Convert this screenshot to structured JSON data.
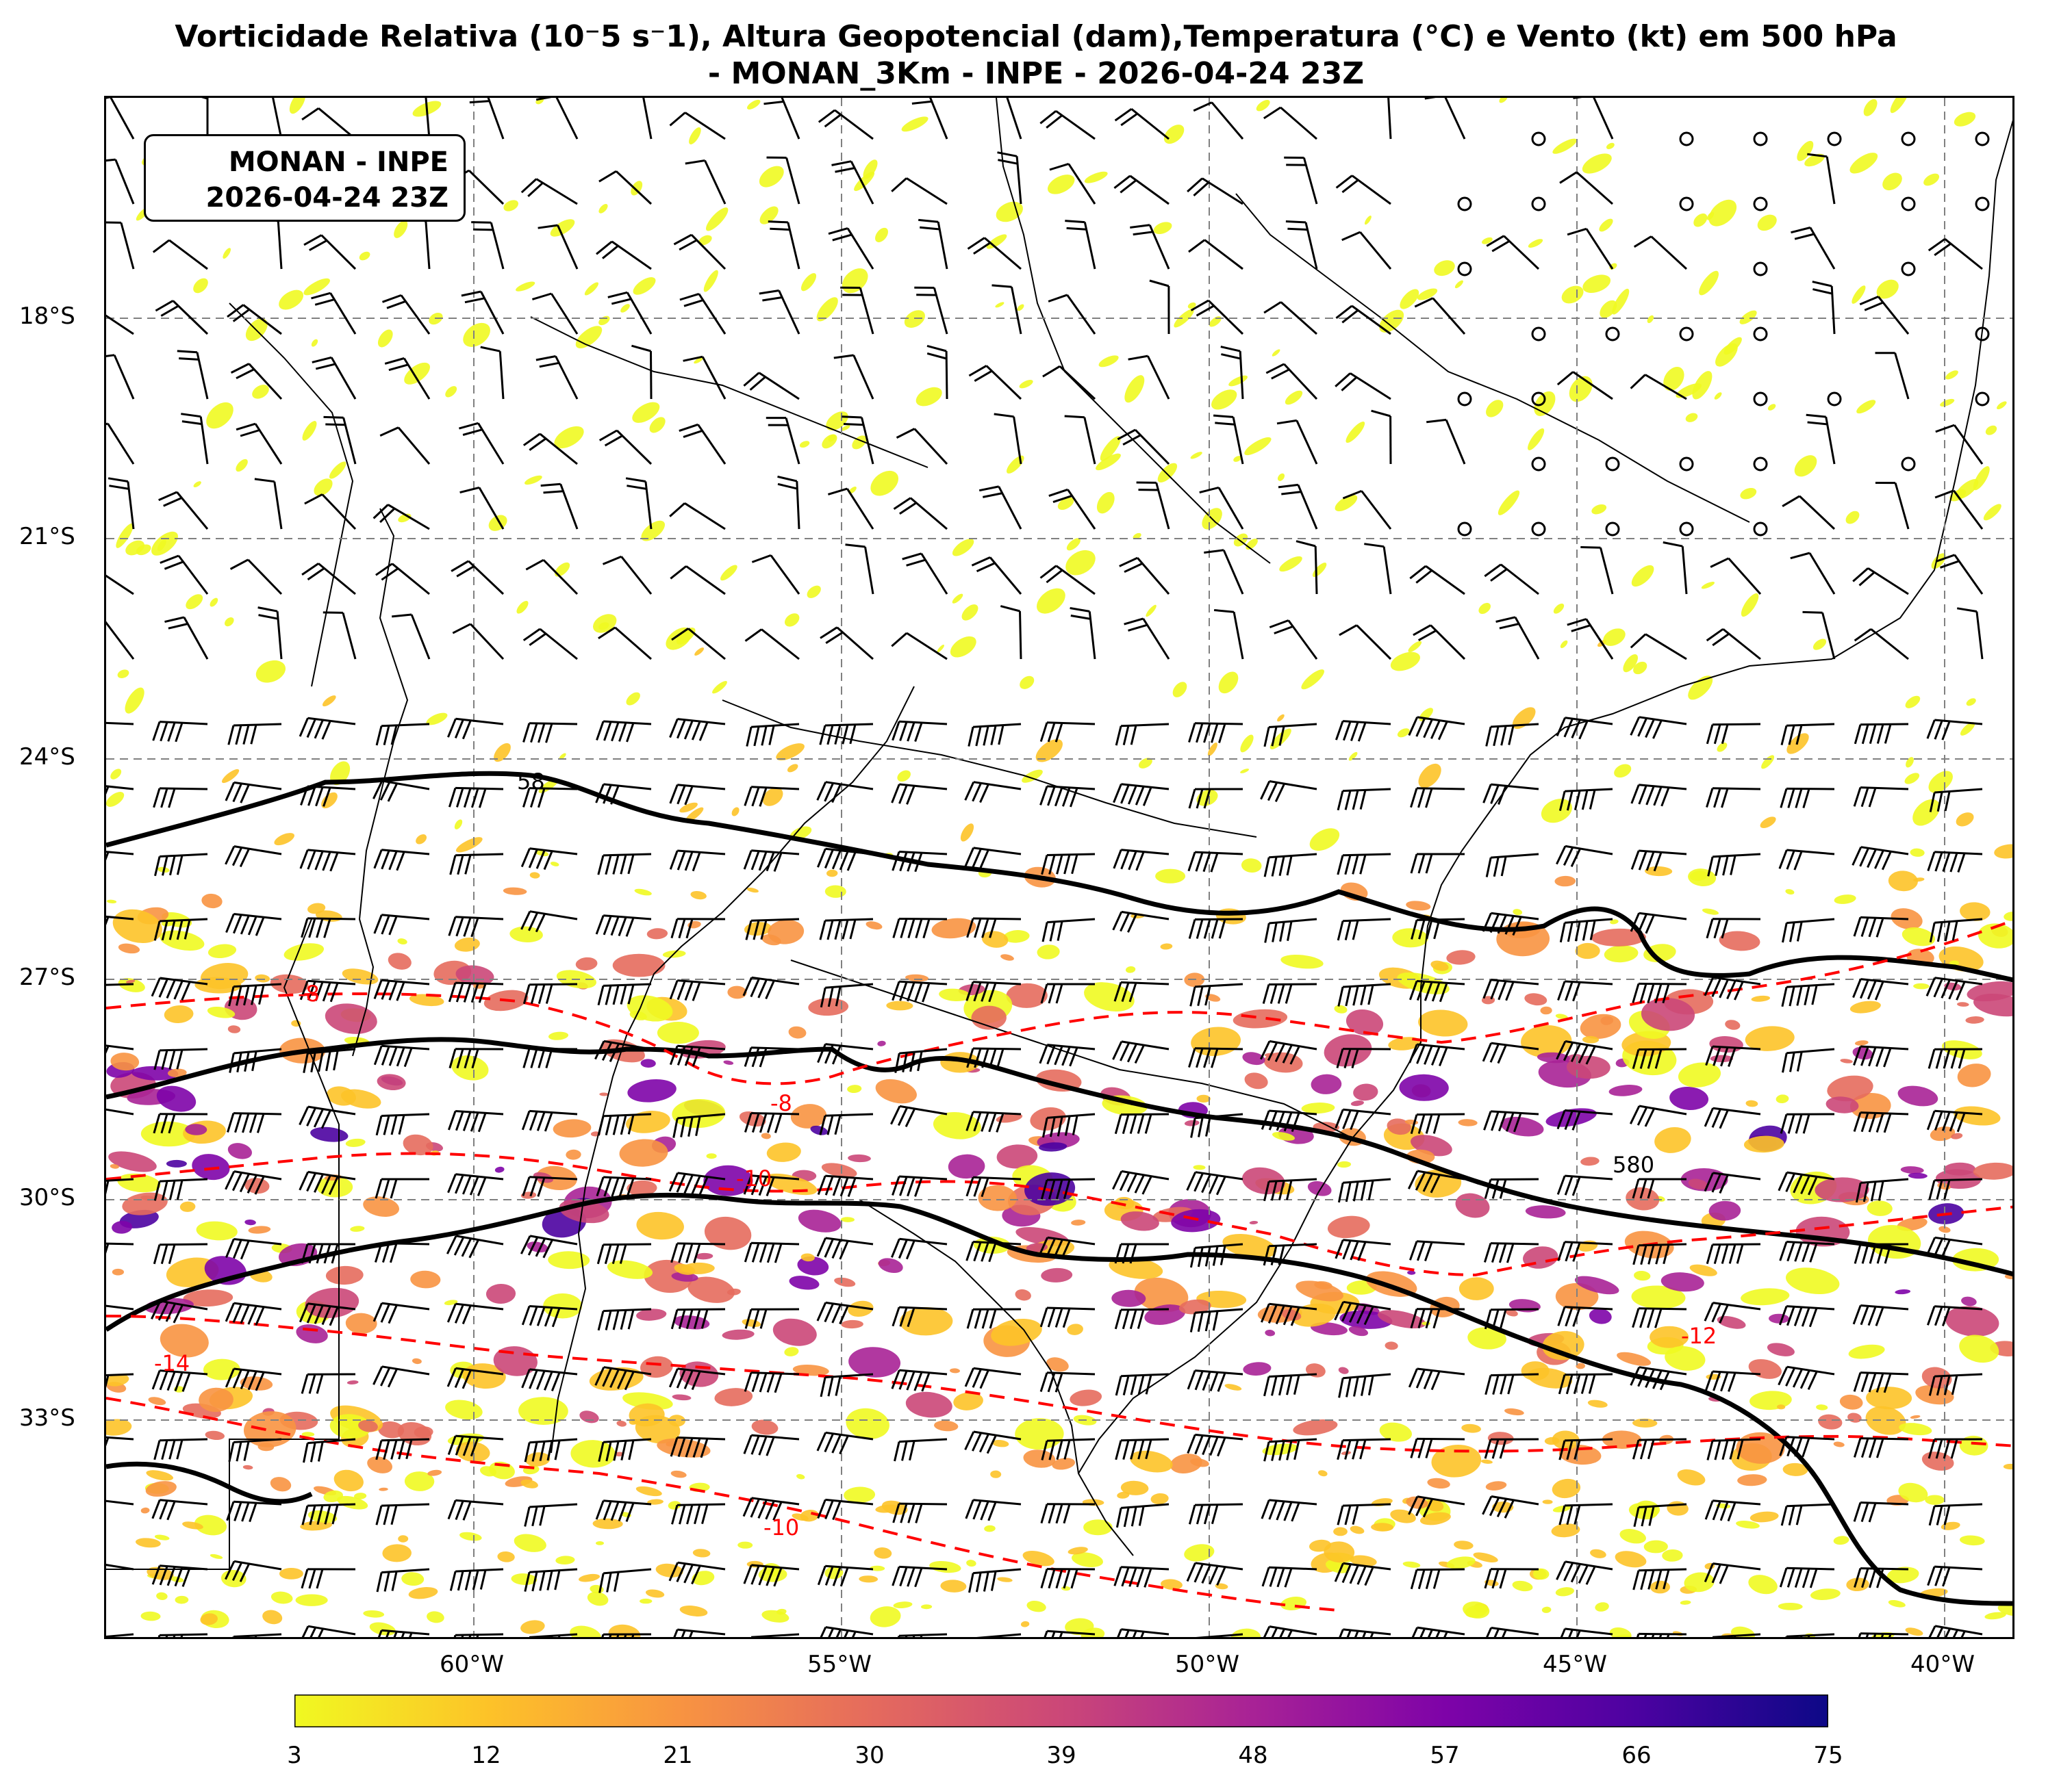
{
  "title": {
    "line1": "Vorticidade Relativa (10⁻5 s⁻1), Altura Geopotencial (dam),Temperatura (°C) e Vento (kt) em 500 hPa",
    "line2": "- MONAN_3Km - INPE - 2026-04-24 23Z"
  },
  "label_box": {
    "line1": "MONAN - INPE",
    "line2": "2026-04-24 23Z"
  },
  "lat_labels": [
    "18°S",
    "21°S",
    "24°S",
    "27°S",
    "30°S",
    "33°S"
  ],
  "lon_labels": [
    "60°W",
    "55°W",
    "50°W",
    "45°W",
    "40°W"
  ],
  "contour_labels": {
    "height": [
      "580",
      "58"
    ],
    "temperature": [
      "-8",
      "-8",
      "-10",
      "-14",
      "-12",
      "-10"
    ]
  },
  "colorbar": {
    "ticks": [
      "3",
      "12",
      "21",
      "30",
      "39",
      "48",
      "57",
      "66",
      "75"
    ],
    "colors": [
      "#f0f921",
      "#fdc328",
      "#f89441",
      "#e56b5d",
      "#cb4778",
      "#a82296",
      "#7e03a8",
      "#4c02a1",
      "#0d0887"
    ]
  },
  "colors": {
    "height_contour": "#000000",
    "temperature_contour": "#ff0000",
    "coastline": "#000000",
    "grid": "#808080"
  }
}
